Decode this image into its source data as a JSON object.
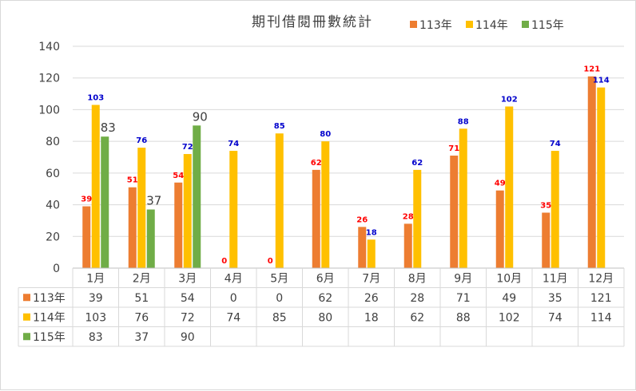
{
  "chart_data": {
    "type": "bar",
    "title": "期刊借閱冊數統計",
    "categories": [
      "1月",
      "2月",
      "3月",
      "4月",
      "5月",
      "6月",
      "7月",
      "8月",
      "9月",
      "10月",
      "11月",
      "12月"
    ],
    "series": [
      {
        "name": "113年",
        "color": "#ED7D31",
        "label_color": "#FF0000",
        "values": [
          39,
          51,
          54,
          0,
          0,
          62,
          26,
          28,
          71,
          49,
          35,
          121
        ]
      },
      {
        "name": "114年",
        "color": "#FFC000",
        "label_color": "#0000CC",
        "values": [
          103,
          76,
          72,
          74,
          85,
          80,
          18,
          62,
          88,
          102,
          74,
          114
        ]
      },
      {
        "name": "115年",
        "color": "#70AD47",
        "label_color": "#404040",
        "values": [
          83,
          37,
          90,
          null,
          null,
          null,
          null,
          null,
          null,
          null,
          null,
          null
        ]
      }
    ],
    "ylim": [
      0,
      140
    ],
    "yticks": [
      0,
      20,
      40,
      60,
      80,
      100,
      120,
      140
    ],
    "grid": true,
    "legend_position": "top",
    "data_table": true
  }
}
